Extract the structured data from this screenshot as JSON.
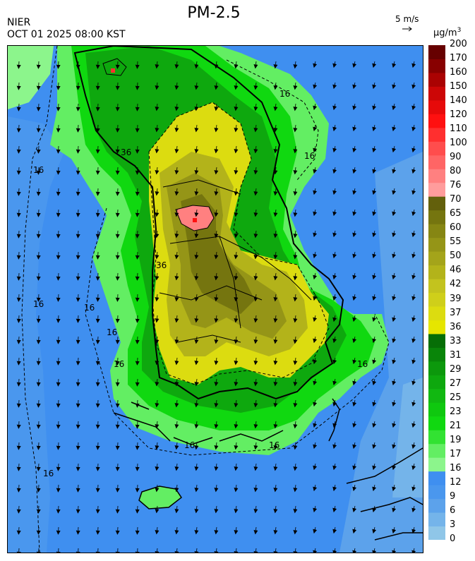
{
  "header": {
    "agency": "NIER",
    "datetime": "OCT 01 2025 08:00 KST",
    "title": "PM-2.5",
    "reference_wind": "5 m/s",
    "unit_base": "µg/m",
    "unit_exp": "3"
  },
  "colorbar": {
    "labels": [
      "0",
      "3",
      "6",
      "9",
      "12",
      "16",
      "17",
      "19",
      "21",
      "23",
      "25",
      "27",
      "29",
      "31",
      "33",
      "36",
      "37",
      "39",
      "42",
      "46",
      "50",
      "55",
      "60",
      "65",
      "70",
      "76",
      "80",
      "90",
      "100",
      "110",
      "120",
      "140",
      "150",
      "160",
      "170",
      "200"
    ],
    "colors": [
      "#8fc6e8",
      "#74b4ea",
      "#5ca2eb",
      "#4a97ee",
      "#3f8ff0",
      "#8cf58c",
      "#63ee63",
      "#32e232",
      "#10d810",
      "#0fc80f",
      "#11b811",
      "#0ea80e",
      "#0c980c",
      "#098509",
      "#066e06",
      "#e6e600",
      "#dcdc10",
      "#cfcf1a",
      "#c3c31e",
      "#b3b31a",
      "#a4a41a",
      "#959517",
      "#868613",
      "#75750f",
      "#63600c",
      "#ff9c9c",
      "#ff8080",
      "#ff6565",
      "#ff4d4d",
      "#ff2f2f",
      "#ff1010",
      "#e60a0a",
      "#cc0606",
      "#aa0202",
      "#880000",
      "#660000"
    ]
  },
  "map": {
    "contour_labels": [
      "16",
      "16",
      "16",
      "16",
      "16",
      "16",
      "16",
      "16",
      "16",
      "16",
      "16",
      "36",
      "36"
    ]
  }
}
